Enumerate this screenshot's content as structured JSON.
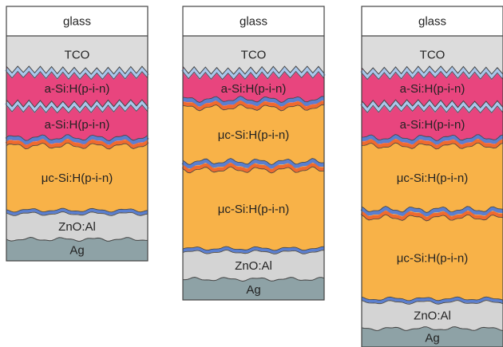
{
  "colors": {
    "glass": "#ffffff",
    "tco": "#dcdcdc",
    "asi": "#e8457e",
    "ucsi": "#f8b248",
    "zno": "#d4d4d4",
    "ag": "#8ea2a6",
    "blue_interface": "#5b7fcf",
    "orange_interface": "#f06a2e",
    "light_blue_interface": "#a9c6ea",
    "outline": "#444444"
  },
  "stacks": [
    {
      "name": "stack-1",
      "layers": [
        {
          "label": "glass",
          "type": "glass"
        },
        {
          "label": "TCO",
          "type": "tco"
        },
        {
          "label": "a-Si:H(p-i-n)",
          "type": "asi"
        },
        {
          "label": "a-Si:H(p-i-n)",
          "type": "asi"
        },
        {
          "label": "μc-Si:H(p-i-n)",
          "type": "ucsi"
        },
        {
          "label": "ZnO:Al",
          "type": "zno"
        },
        {
          "label": "Ag",
          "type": "ag"
        }
      ]
    },
    {
      "name": "stack-2",
      "layers": [
        {
          "label": "glass",
          "type": "glass"
        },
        {
          "label": "TCO",
          "type": "tco"
        },
        {
          "label": "a-Si:H(p-i-n)",
          "type": "asi"
        },
        {
          "label": "μc-Si:H(p-i-n)",
          "type": "ucsi"
        },
        {
          "label": "μc-Si:H(p-i-n)",
          "type": "ucsi"
        },
        {
          "label": "ZnO:Al",
          "type": "zno"
        },
        {
          "label": "Ag",
          "type": "ag"
        }
      ]
    },
    {
      "name": "stack-3",
      "layers": [
        {
          "label": "glass",
          "type": "glass"
        },
        {
          "label": "TCO",
          "type": "tco"
        },
        {
          "label": "a-Si:H(p-i-n)",
          "type": "asi"
        },
        {
          "label": "a-Si:H(p-i-n)",
          "type": "asi"
        },
        {
          "label": "μc-Si:H(p-i-n)",
          "type": "ucsi"
        },
        {
          "label": "μc-Si:H(p-i-n)",
          "type": "ucsi"
        },
        {
          "label": "ZnO:Al",
          "type": "zno"
        },
        {
          "label": "Ag",
          "type": "ag"
        }
      ]
    }
  ]
}
